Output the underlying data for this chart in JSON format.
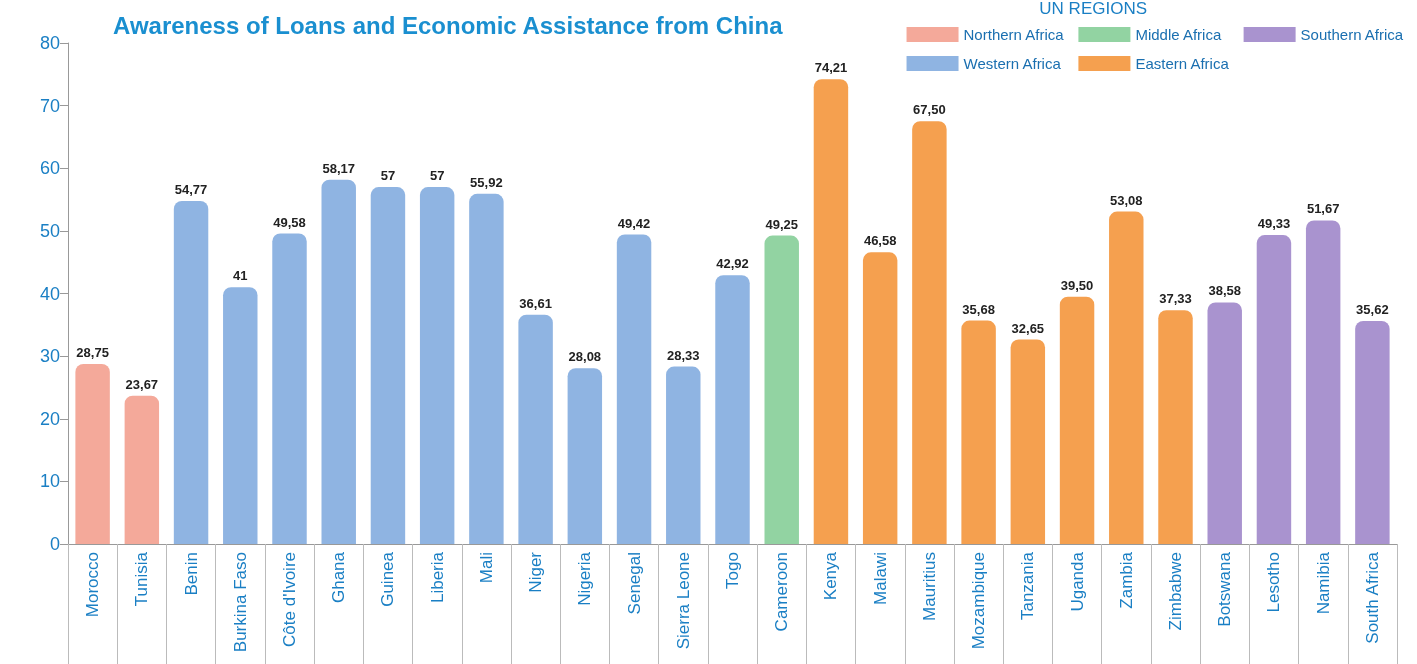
{
  "chart_data": {
    "type": "bar",
    "title": "Awareness of Loans and Economic Assistance from China",
    "legend_title": "UN REGIONS",
    "legend": "top right",
    "stacked": true,
    "grid": false,
    "categories": [
      "Morocco",
      "Tunisia",
      "Benin",
      "Burkina Faso",
      "Côte d'Ivoire",
      "Ghana",
      "Guinea",
      "Liberia",
      "Mali",
      "Niger",
      "Nigeria",
      "Senegal",
      "Sierra Leone",
      "Togo",
      "Cameroon",
      "Kenya",
      "Malawi",
      "Mauritius",
      "Mozambique",
      "Tanzania",
      "Uganda",
      "Zambia",
      "Zimbabwe",
      "Botswana",
      "Lesotho",
      "Namibia",
      "South Africa"
    ],
    "ylim": [
      0,
      80
    ],
    "yticks": [
      0,
      10,
      20,
      30,
      40,
      50,
      60,
      70,
      80
    ],
    "series": [
      {
        "name": "Northern Africa",
        "color": "#f4a99a",
        "values": [
          28.75,
          23.67,
          null,
          null,
          null,
          null,
          null,
          null,
          null,
          null,
          null,
          null,
          null,
          null,
          null,
          null,
          null,
          null,
          null,
          null,
          null,
          null,
          null,
          null,
          null,
          null,
          null
        ],
        "value_labels": [
          "28,75",
          "23,67",
          null,
          null,
          null,
          null,
          null,
          null,
          null,
          null,
          null,
          null,
          null,
          null,
          null,
          null,
          null,
          null,
          null,
          null,
          null,
          null,
          null,
          null,
          null,
          null,
          null
        ]
      },
      {
        "name": "Western Africa",
        "color": "#8fb4e2",
        "values": [
          null,
          null,
          54.77,
          41,
          49.58,
          58.17,
          57,
          57,
          55.92,
          36.61,
          28.08,
          49.42,
          28.33,
          42.92,
          null,
          null,
          null,
          null,
          null,
          null,
          null,
          null,
          null,
          null,
          null,
          null,
          null
        ],
        "value_labels": [
          null,
          null,
          "54,77",
          "41",
          "49,58",
          "58,17",
          "57",
          "57",
          "55,92",
          "36,61",
          "28,08",
          "49,42",
          "28,33",
          "42,92",
          null,
          null,
          null,
          null,
          null,
          null,
          null,
          null,
          null,
          null,
          null,
          null,
          null
        ]
      },
      {
        "name": "Middle Africa",
        "color": "#92d3a2",
        "values": [
          null,
          null,
          null,
          null,
          null,
          null,
          null,
          null,
          null,
          null,
          null,
          null,
          null,
          null,
          49.25,
          null,
          null,
          null,
          null,
          null,
          null,
          null,
          null,
          null,
          null,
          null,
          null
        ],
        "value_labels": [
          null,
          null,
          null,
          null,
          null,
          null,
          null,
          null,
          null,
          null,
          null,
          null,
          null,
          null,
          "49,25",
          null,
          null,
          null,
          null,
          null,
          null,
          null,
          null,
          null,
          null,
          null,
          null
        ]
      },
      {
        "name": "Eastern Africa",
        "color": "#f5a04f",
        "values": [
          null,
          null,
          null,
          null,
          null,
          null,
          null,
          null,
          null,
          null,
          null,
          null,
          null,
          null,
          null,
          74.21,
          46.58,
          67.5,
          35.68,
          32.65,
          39.5,
          53.08,
          37.33,
          null,
          null,
          null,
          null
        ],
        "value_labels": [
          null,
          null,
          null,
          null,
          null,
          null,
          null,
          null,
          null,
          null,
          null,
          null,
          null,
          null,
          null,
          "74,21",
          "46,58",
          "67,50",
          "35,68",
          "32,65",
          "39,50",
          "53,08",
          "37,33",
          null,
          null,
          null,
          null
        ]
      },
      {
        "name": "Southern Africa",
        "color": "#a993cf",
        "values": [
          null,
          null,
          null,
          null,
          null,
          null,
          null,
          null,
          null,
          null,
          null,
          null,
          null,
          null,
          null,
          null,
          null,
          null,
          null,
          null,
          null,
          null,
          null,
          38.58,
          49.33,
          51.67,
          35.62
        ],
        "value_labels": [
          null,
          null,
          null,
          null,
          null,
          null,
          null,
          null,
          null,
          null,
          null,
          null,
          null,
          null,
          null,
          null,
          null,
          null,
          null,
          null,
          null,
          null,
          null,
          "38,58",
          "49,33",
          "51,67",
          "35,62"
        ]
      }
    ]
  }
}
